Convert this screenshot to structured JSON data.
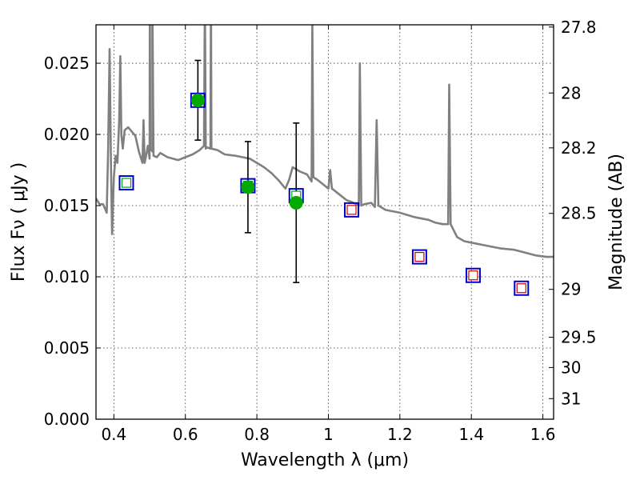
{
  "chart_data": {
    "type": "scatter",
    "xlabel": "Wavelength  λ (μm)",
    "ylabel_left": "Flux  Fν  ( μJy )",
    "ylabel_right": "Magnitude (AB)",
    "xlim": [
      0.35,
      1.63
    ],
    "ylim": [
      0.0,
      0.0277
    ],
    "grid": true,
    "x_ticks": [
      0.4,
      0.6,
      0.8,
      1.0,
      1.2,
      1.4,
      1.6
    ],
    "x_tick_labels": [
      "0.4",
      "0.6",
      "0.8",
      "1",
      "1.2",
      "1.4",
      "1.6"
    ],
    "y_ticks": [
      0.0,
      0.005,
      0.01,
      0.015,
      0.02,
      0.025
    ],
    "y_tick_labels": [
      "0.000",
      "0.005",
      "0.010",
      "0.015",
      "0.020",
      "0.025"
    ],
    "right_ticks_mag": [
      27.8,
      28,
      28.2,
      28.5,
      29,
      29.5,
      30,
      31
    ],
    "right_tick_labels": [
      "27.8",
      "28",
      "28.2",
      "28.5",
      "29",
      "29.5",
      "30",
      "31"
    ],
    "colors": {
      "sed": "#808080",
      "observed": "#00aa00",
      "model_box": "#0000cc",
      "model_inner_fitted": "#00aa00",
      "model_inner_predicted": "#cc0000",
      "errorbar": "#000000"
    },
    "series": [
      {
        "kind": "errorbar",
        "marker": "filled-circle",
        "points": [
          {
            "x": 0.635,
            "y": 0.0224,
            "err": 0.0028
          },
          {
            "x": 0.775,
            "y": 0.0163,
            "err": 0.0032
          },
          {
            "x": 0.91,
            "y": 0.0152,
            "err": 0.0056
          }
        ]
      },
      {
        "kind": "model-fluxes",
        "marker": "open-square",
        "points": [
          {
            "x": 0.435,
            "y": 0.0166,
            "inner": "model_inner_fitted"
          },
          {
            "x": 0.635,
            "y": 0.0224,
            "inner": "model_inner_fitted"
          },
          {
            "x": 0.775,
            "y": 0.0164,
            "inner": "model_inner_fitted"
          },
          {
            "x": 0.91,
            "y": 0.0157,
            "inner": "model_inner_fitted"
          },
          {
            "x": 1.065,
            "y": 0.0147,
            "inner": "model_inner_predicted"
          },
          {
            "x": 1.255,
            "y": 0.0114,
            "inner": "model_inner_predicted"
          },
          {
            "x": 1.405,
            "y": 0.0101,
            "inner": "model_inner_predicted"
          },
          {
            "x": 1.54,
            "y": 0.0092,
            "inner": "model_inner_predicted"
          }
        ]
      },
      {
        "kind": "line",
        "points": [
          [
            0.35,
            0.0155
          ],
          [
            0.36,
            0.0151
          ],
          [
            0.37,
            0.0151
          ],
          [
            0.38,
            0.0145
          ],
          [
            0.384,
            0.019
          ],
          [
            0.388,
            0.026
          ],
          [
            0.392,
            0.0175
          ],
          [
            0.395,
            0.013
          ],
          [
            0.4,
            0.017
          ],
          [
            0.405,
            0.0185
          ],
          [
            0.41,
            0.018
          ],
          [
            0.415,
            0.021
          ],
          [
            0.418,
            0.0255
          ],
          [
            0.421,
            0.02
          ],
          [
            0.425,
            0.019
          ],
          [
            0.43,
            0.0203
          ],
          [
            0.44,
            0.0205
          ],
          [
            0.46,
            0.0199
          ],
          [
            0.47,
            0.0188
          ],
          [
            0.48,
            0.018
          ],
          [
            0.483,
            0.021
          ],
          [
            0.486,
            0.018
          ],
          [
            0.49,
            0.0185
          ],
          [
            0.495,
            0.0192
          ],
          [
            0.5,
            0.0183
          ],
          [
            0.5005,
            0.03
          ],
          [
            0.502,
            0.019
          ],
          [
            0.508,
            0.0188
          ],
          [
            0.5075,
            0.03
          ],
          [
            0.511,
            0.0185
          ],
          [
            0.52,
            0.0184
          ],
          [
            0.53,
            0.0187
          ],
          [
            0.55,
            0.0184
          ],
          [
            0.58,
            0.0182
          ],
          [
            0.6,
            0.0184
          ],
          [
            0.62,
            0.0186
          ],
          [
            0.64,
            0.0189
          ],
          [
            0.652,
            0.0192
          ],
          [
            0.6545,
            0.03
          ],
          [
            0.657,
            0.019
          ],
          [
            0.66,
            0.0191
          ],
          [
            0.67,
            0.019
          ],
          [
            0.6715,
            0.03
          ],
          [
            0.673,
            0.019
          ],
          [
            0.69,
            0.0189
          ],
          [
            0.71,
            0.0186
          ],
          [
            0.74,
            0.0185
          ],
          [
            0.76,
            0.0184
          ],
          [
            0.78,
            0.0183
          ],
          [
            0.8,
            0.018
          ],
          [
            0.82,
            0.0177
          ],
          [
            0.84,
            0.0173
          ],
          [
            0.86,
            0.0168
          ],
          [
            0.88,
            0.0162
          ],
          [
            0.89,
            0.0168
          ],
          [
            0.9,
            0.0177
          ],
          [
            0.92,
            0.0174
          ],
          [
            0.94,
            0.0172
          ],
          [
            0.953,
            0.0167
          ],
          [
            0.955,
            0.028
          ],
          [
            0.958,
            0.017
          ],
          [
            0.97,
            0.0168
          ],
          [
            0.99,
            0.0164
          ],
          [
            1.0,
            0.0162
          ],
          [
            1.005,
            0.0175
          ],
          [
            1.01,
            0.0162
          ],
          [
            1.03,
            0.0158
          ],
          [
            1.05,
            0.0154
          ],
          [
            1.07,
            0.0152
          ],
          [
            1.085,
            0.015
          ],
          [
            1.088,
            0.025
          ],
          [
            1.092,
            0.015
          ],
          [
            1.1,
            0.0151
          ],
          [
            1.12,
            0.0152
          ],
          [
            1.13,
            0.0149
          ],
          [
            1.135,
            0.021
          ],
          [
            1.14,
            0.015
          ],
          [
            1.16,
            0.0147
          ],
          [
            1.2,
            0.0145
          ],
          [
            1.24,
            0.0142
          ],
          [
            1.28,
            0.014
          ],
          [
            1.3,
            0.0138
          ],
          [
            1.32,
            0.0137
          ],
          [
            1.335,
            0.0137
          ],
          [
            1.338,
            0.0235
          ],
          [
            1.342,
            0.0137
          ],
          [
            1.36,
            0.0128
          ],
          [
            1.38,
            0.0125
          ],
          [
            1.4,
            0.0124
          ],
          [
            1.44,
            0.0122
          ],
          [
            1.48,
            0.012
          ],
          [
            1.52,
            0.0119
          ],
          [
            1.55,
            0.0117
          ],
          [
            1.58,
            0.0115
          ],
          [
            1.61,
            0.0114
          ],
          [
            1.63,
            0.0114
          ]
        ]
      }
    ]
  }
}
